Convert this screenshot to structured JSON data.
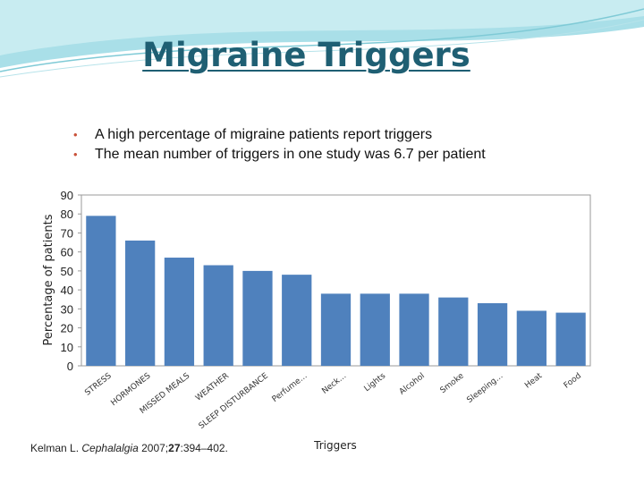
{
  "slide": {
    "title": "Migraine Triggers",
    "bullets": [
      "A high percentage of migraine patients report triggers",
      "The mean number of triggers in one study was 6.7 per patient"
    ],
    "citation": {
      "authors": "Kelman L.",
      "journal": "Cephalalgia",
      "year": "2007;",
      "volume": "27",
      "pages": ":394–402."
    },
    "colors": {
      "title": "#1f5f73",
      "bar": "#4f81bd",
      "bullet": "#c9523a"
    }
  },
  "chart_data": {
    "type": "bar",
    "xlabel": "Triggers",
    "ylabel": "Percentage of patients",
    "ylim": [
      0,
      90
    ],
    "yticks": [
      0,
      10,
      20,
      30,
      40,
      50,
      60,
      70,
      80,
      90
    ],
    "grid": false,
    "categories": [
      "STRESS",
      "HORMONES",
      "MISSED MEALS",
      "WEATHER",
      "SLEEP DISTURBANCE",
      "Perfume…",
      "Neck…",
      "Lights",
      "Alcohol",
      "Smoke",
      "Sleeping…",
      "Heat",
      "Food"
    ],
    "values": [
      79,
      66,
      57,
      53,
      50,
      48,
      38,
      38,
      38,
      36,
      33,
      29,
      28
    ],
    "bar_color": "#4f81bd"
  }
}
